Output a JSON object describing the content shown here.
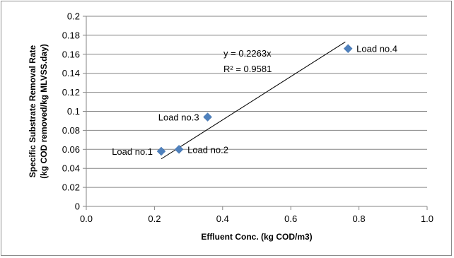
{
  "chart_data": {
    "type": "scatter",
    "xlabel": "Effluent Conc. (kg COD/m3)",
    "ylabel_lines": [
      "Specific Substrate Removal Rate",
      "(kg COD removed/kg MLVSS.day)"
    ],
    "xlim": [
      0,
      1.0
    ],
    "ylim": [
      0,
      0.2
    ],
    "x_ticks": [
      "0.0",
      "0.2",
      "0.4",
      "0.6",
      "0.8",
      "1.0"
    ],
    "y_ticks": [
      "0",
      "0.02",
      "0.04",
      "0.06",
      "0.08",
      "0.1",
      "0.12",
      "0.14",
      "0.16",
      "0.18",
      "0.2"
    ],
    "grid": "horizontal",
    "marker": "diamond",
    "marker_color": "#4f81bd",
    "points": [
      {
        "label": "Load no.1",
        "x": 0.22,
        "y": 0.058,
        "label_side": "left"
      },
      {
        "label": "Load no.2",
        "x": 0.272,
        "y": 0.06,
        "label_side": "right"
      },
      {
        "label": "Load no.3",
        "x": 0.356,
        "y": 0.094,
        "label_side": "left"
      },
      {
        "label": "Load no.4",
        "x": 0.768,
        "y": 0.166,
        "label_side": "right"
      }
    ],
    "trendline": {
      "x_start": 0.22,
      "y_start": 0.05,
      "x_end": 0.76,
      "y_end": 0.173
    },
    "equation": "y = 0.2263x",
    "r_squared": "R² = 0.9581"
  }
}
